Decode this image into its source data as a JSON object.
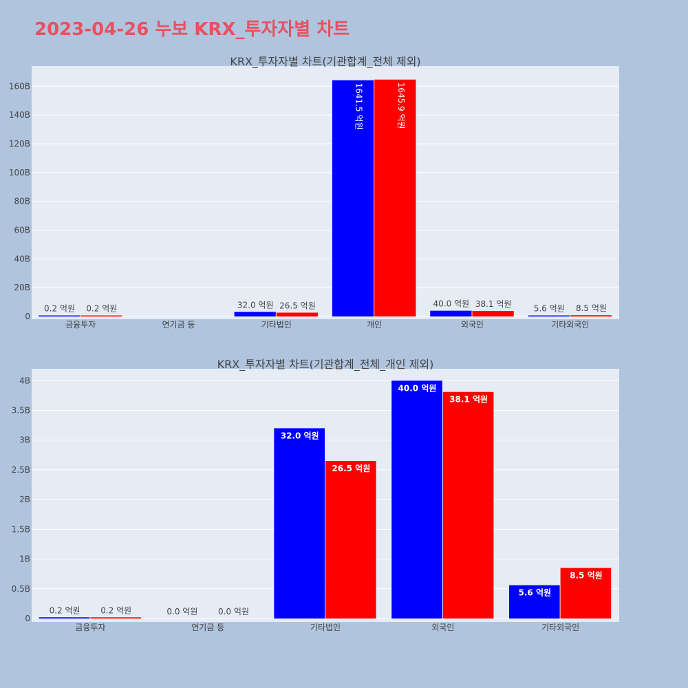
{
  "title": "2023-04-26 누보 KRX_투자자별 차트",
  "chart_data": [
    {
      "type": "bar",
      "title": "KRX_투자자별 차트(기관합계_전체 제외)",
      "categories": [
        "금융투자",
        "연기금 등",
        "기타법인",
        "개인",
        "외국인",
        "기타외국인"
      ],
      "series": [
        {
          "color": "#0000ff",
          "values": [
            0.02,
            0,
            3.2,
            164.15,
            4.0,
            0.56
          ],
          "labels": [
            "0.2 억원",
            "",
            "32.0 억원",
            "1641.5 억원",
            "40.0 억원",
            "5.6 억원"
          ]
        },
        {
          "color": "#ff0000",
          "values": [
            0.02,
            0,
            2.65,
            164.59,
            3.81,
            0.85
          ],
          "labels": [
            "0.2 억원",
            "",
            "26.5 억원",
            "1645.9 억원",
            "38.1 억원",
            "8.5 억원"
          ]
        }
      ],
      "ylim": [
        0,
        174
      ],
      "yticks": [
        0,
        20,
        40,
        60,
        80,
        100,
        120,
        140,
        160
      ],
      "ytick_labels": [
        "0",
        "20B",
        "40B",
        "60B",
        "80B",
        "100B",
        "120B",
        "140B",
        "160B"
      ],
      "grid": true
    },
    {
      "type": "bar",
      "title": "KRX_투자자별 차트(기관합계_전체_개인 제외)",
      "categories": [
        "금융투자",
        "연기금 등",
        "기타법인",
        "외국인",
        "기타외국인"
      ],
      "series": [
        {
          "color": "#0000ff",
          "values": [
            0.02,
            0,
            3.2,
            4.0,
            0.56
          ],
          "labels": [
            "0.2 억원",
            "0.0 억원",
            "32.0 억원",
            "40.0 억원",
            "5.6 억원"
          ]
        },
        {
          "color": "#ff0000",
          "values": [
            0.02,
            0,
            2.65,
            3.81,
            0.85
          ],
          "labels": [
            "0.2 억원",
            "0.0 억원",
            "26.5 억원",
            "38.1 억원",
            "8.5 억원"
          ]
        }
      ],
      "ylim": [
        0,
        4.2
      ],
      "yticks": [
        0,
        0.5,
        1,
        1.5,
        2,
        2.5,
        3,
        3.5,
        4
      ],
      "ytick_labels": [
        "0",
        "0.5B",
        "1B",
        "1.5B",
        "2B",
        "2.5B",
        "3B",
        "3.5B",
        "4B"
      ],
      "grid": true
    }
  ]
}
